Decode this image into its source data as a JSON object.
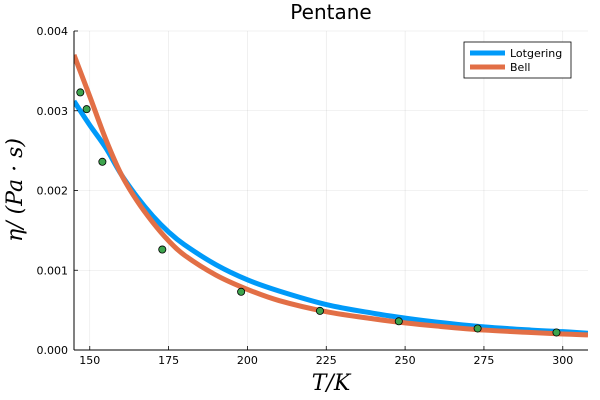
{
  "chart_data": {
    "type": "line",
    "title": "Pentane",
    "xlabel": "T/K",
    "ylabel": "η/ (Pa · s)",
    "xlim": [
      145,
      308
    ],
    "ylim": [
      0,
      0.004
    ],
    "xticks": [
      150,
      175,
      200,
      225,
      250,
      275,
      300
    ],
    "xtick_labels": [
      "150",
      "175",
      "200",
      "225",
      "250",
      "275",
      "300"
    ],
    "yticks": [
      0,
      0.001,
      0.002,
      0.003,
      0.004
    ],
    "ytick_labels": [
      "0.000",
      "0.001",
      "0.002",
      "0.003",
      "0.004"
    ],
    "grid": true,
    "legend_position": "top-right",
    "series": [
      {
        "name": "Lotgering",
        "color": "#009af9",
        "x": [
          145,
          150,
          155,
          160,
          165,
          170,
          175,
          180,
          190,
          200,
          210,
          225,
          240,
          250,
          260,
          275,
          290,
          300,
          308
        ],
        "values": [
          0.00312,
          0.00282,
          0.00254,
          0.0022,
          0.00192,
          0.00168,
          0.00148,
          0.00132,
          0.00107,
          0.00088,
          0.00074,
          0.00057,
          0.00046,
          0.0004,
          0.00035,
          0.00029,
          0.00025,
          0.00023,
          0.00021
        ]
      },
      {
        "name": "Bell",
        "color": "#e26f46",
        "x": [
          145,
          150,
          155,
          160,
          165,
          170,
          175,
          180,
          190,
          200,
          210,
          225,
          240,
          250,
          260,
          275,
          290,
          300,
          308
        ],
        "values": [
          0.0037,
          0.00318,
          0.00265,
          0.0022,
          0.00187,
          0.0016,
          0.00137,
          0.00119,
          0.00094,
          0.00076,
          0.00062,
          0.00048,
          0.00039,
          0.00034,
          0.0003,
          0.00025,
          0.00022,
          0.0002,
          0.00019
        ]
      }
    ],
    "scatter": {
      "color": "#3da44d",
      "x": [
        147,
        149,
        154,
        173,
        198,
        223,
        248,
        273,
        298
      ],
      "values": [
        0.00323,
        0.00302,
        0.00236,
        0.00126,
        0.00073,
        0.00049,
        0.00036,
        0.00027,
        0.00022
      ]
    }
  }
}
